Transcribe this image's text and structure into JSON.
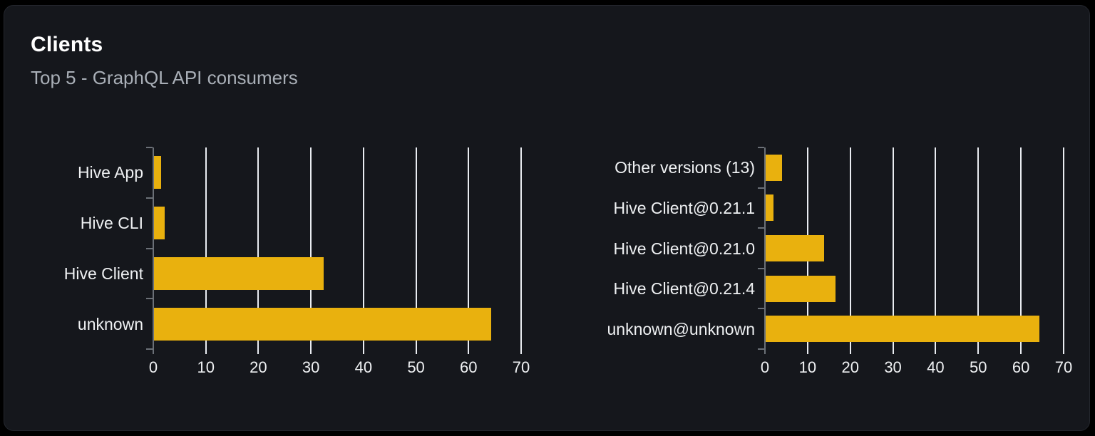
{
  "card": {
    "title": "Clients",
    "subtitle": "Top 5 - GraphQL API consumers"
  },
  "colors": {
    "page_bg": "#000000",
    "card_bg": "#15171c",
    "card_border": "#24272e",
    "bar": "#e9b10e",
    "gridline": "#e9ecf1",
    "axis": "#6b7077",
    "title": "#ffffff",
    "subtitle": "#a9afb7",
    "label": "#eff1f3"
  },
  "chart_data": [
    {
      "type": "bar",
      "orientation": "horizontal",
      "name": "clients-by-name",
      "categories": [
        "Hive App",
        "Hive CLI",
        "Hive Client",
        "unknown"
      ],
      "values": [
        1.4,
        2.1,
        32.3,
        64.2
      ],
      "xlim": [
        0,
        70
      ],
      "xticks": [
        0,
        10,
        20,
        30,
        40,
        50,
        60,
        70
      ],
      "color": "#e9b10e",
      "grid": "vertical",
      "legend": "none"
    },
    {
      "type": "bar",
      "orientation": "horizontal",
      "name": "clients-by-version",
      "categories": [
        "Other versions (13)",
        "Hive Client@0.21.1",
        "Hive Client@0.21.0",
        "Hive Client@0.21.4",
        "unknown@unknown"
      ],
      "values": [
        3.8,
        1.8,
        13.7,
        16.3,
        64.2
      ],
      "xlim": [
        0,
        70
      ],
      "xticks": [
        0,
        10,
        20,
        30,
        40,
        50,
        60,
        70
      ],
      "color": "#e9b10e",
      "grid": "vertical",
      "legend": "none"
    }
  ]
}
